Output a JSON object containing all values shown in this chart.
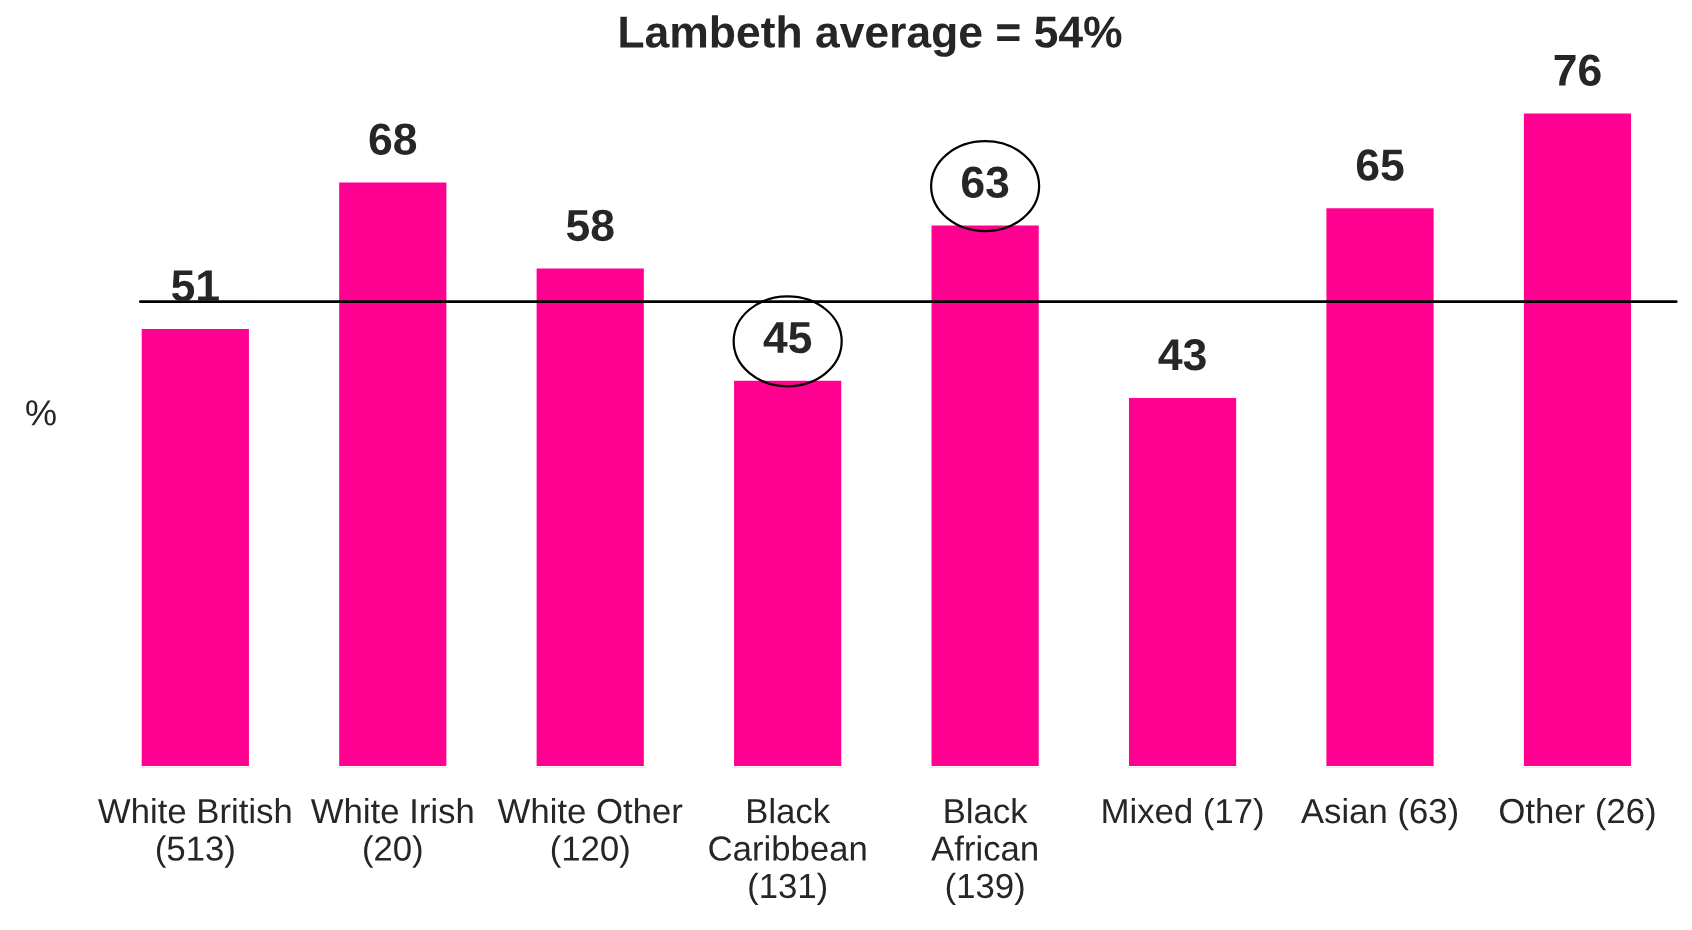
{
  "chart_data": {
    "type": "bar",
    "title": "Lambeth average = 54%",
    "ylabel": "%",
    "categories": [
      "White British\n(513)",
      "White Irish\n(20)",
      "White Other\n(120)",
      "Black\nCaribbean\n(131)",
      "Black\nAfrican\n(139)",
      "Mixed (17)",
      "Asian (63)",
      "Other (26)"
    ],
    "values": [
      51,
      68,
      58,
      45,
      63,
      43,
      65,
      76
    ],
    "color": "#ff0090",
    "ref_lines": [
      {
        "axis": "y",
        "value": 54,
        "color": "#000000"
      }
    ],
    "data_labels": true,
    "tick_labels": "x"
  }
}
